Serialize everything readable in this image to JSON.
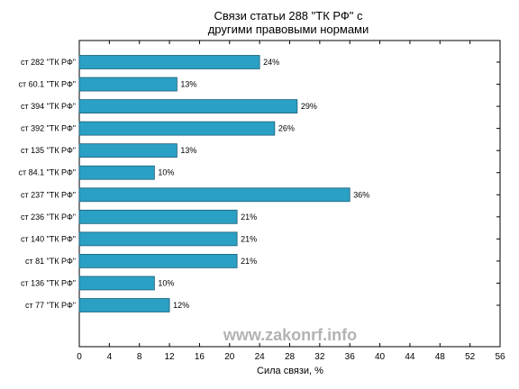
{
  "chart_data": {
    "type": "bar",
    "orientation": "horizontal",
    "title_lines": [
      "Связи статьи 288 \"ТК РФ\" с",
      "другими правовыми нормами"
    ],
    "xlabel": "Сила связи, %",
    "ylabel": "",
    "xlim": [
      0,
      56
    ],
    "xticks": [
      0,
      4,
      8,
      12,
      16,
      20,
      24,
      28,
      32,
      36,
      40,
      44,
      48,
      52,
      56
    ],
    "grid": false,
    "bar_color": "#2aa0c4",
    "bar_edge_color": "#1f5f78",
    "categories": [
      "ст 282 \"ТК РФ\"",
      "ст 60.1 \"ТК РФ\"",
      "ст 394 \"ТК РФ\"",
      "ст 392 \"ТК РФ\"",
      "ст 135 \"ТК РФ\"",
      "ст 84.1 \"ТК РФ\"",
      "ст 237 \"ТК РФ\"",
      "ст 236 \"ТК РФ\"",
      "ст 140 \"ТК РФ\"",
      "ст 81 \"ТК РФ\"",
      "ст 136 \"ТК РФ\"",
      "ст 77 \"ТК РФ\""
    ],
    "values": [
      24,
      13,
      29,
      26,
      13,
      10,
      36,
      21,
      21,
      21,
      10,
      12
    ],
    "value_labels": [
      "24%",
      "13%",
      "29%",
      "26%",
      "13%",
      "10%",
      "36%",
      "21%",
      "21%",
      "21%",
      "10%",
      "12%"
    ],
    "watermark": "www.zakonrf.info"
  }
}
